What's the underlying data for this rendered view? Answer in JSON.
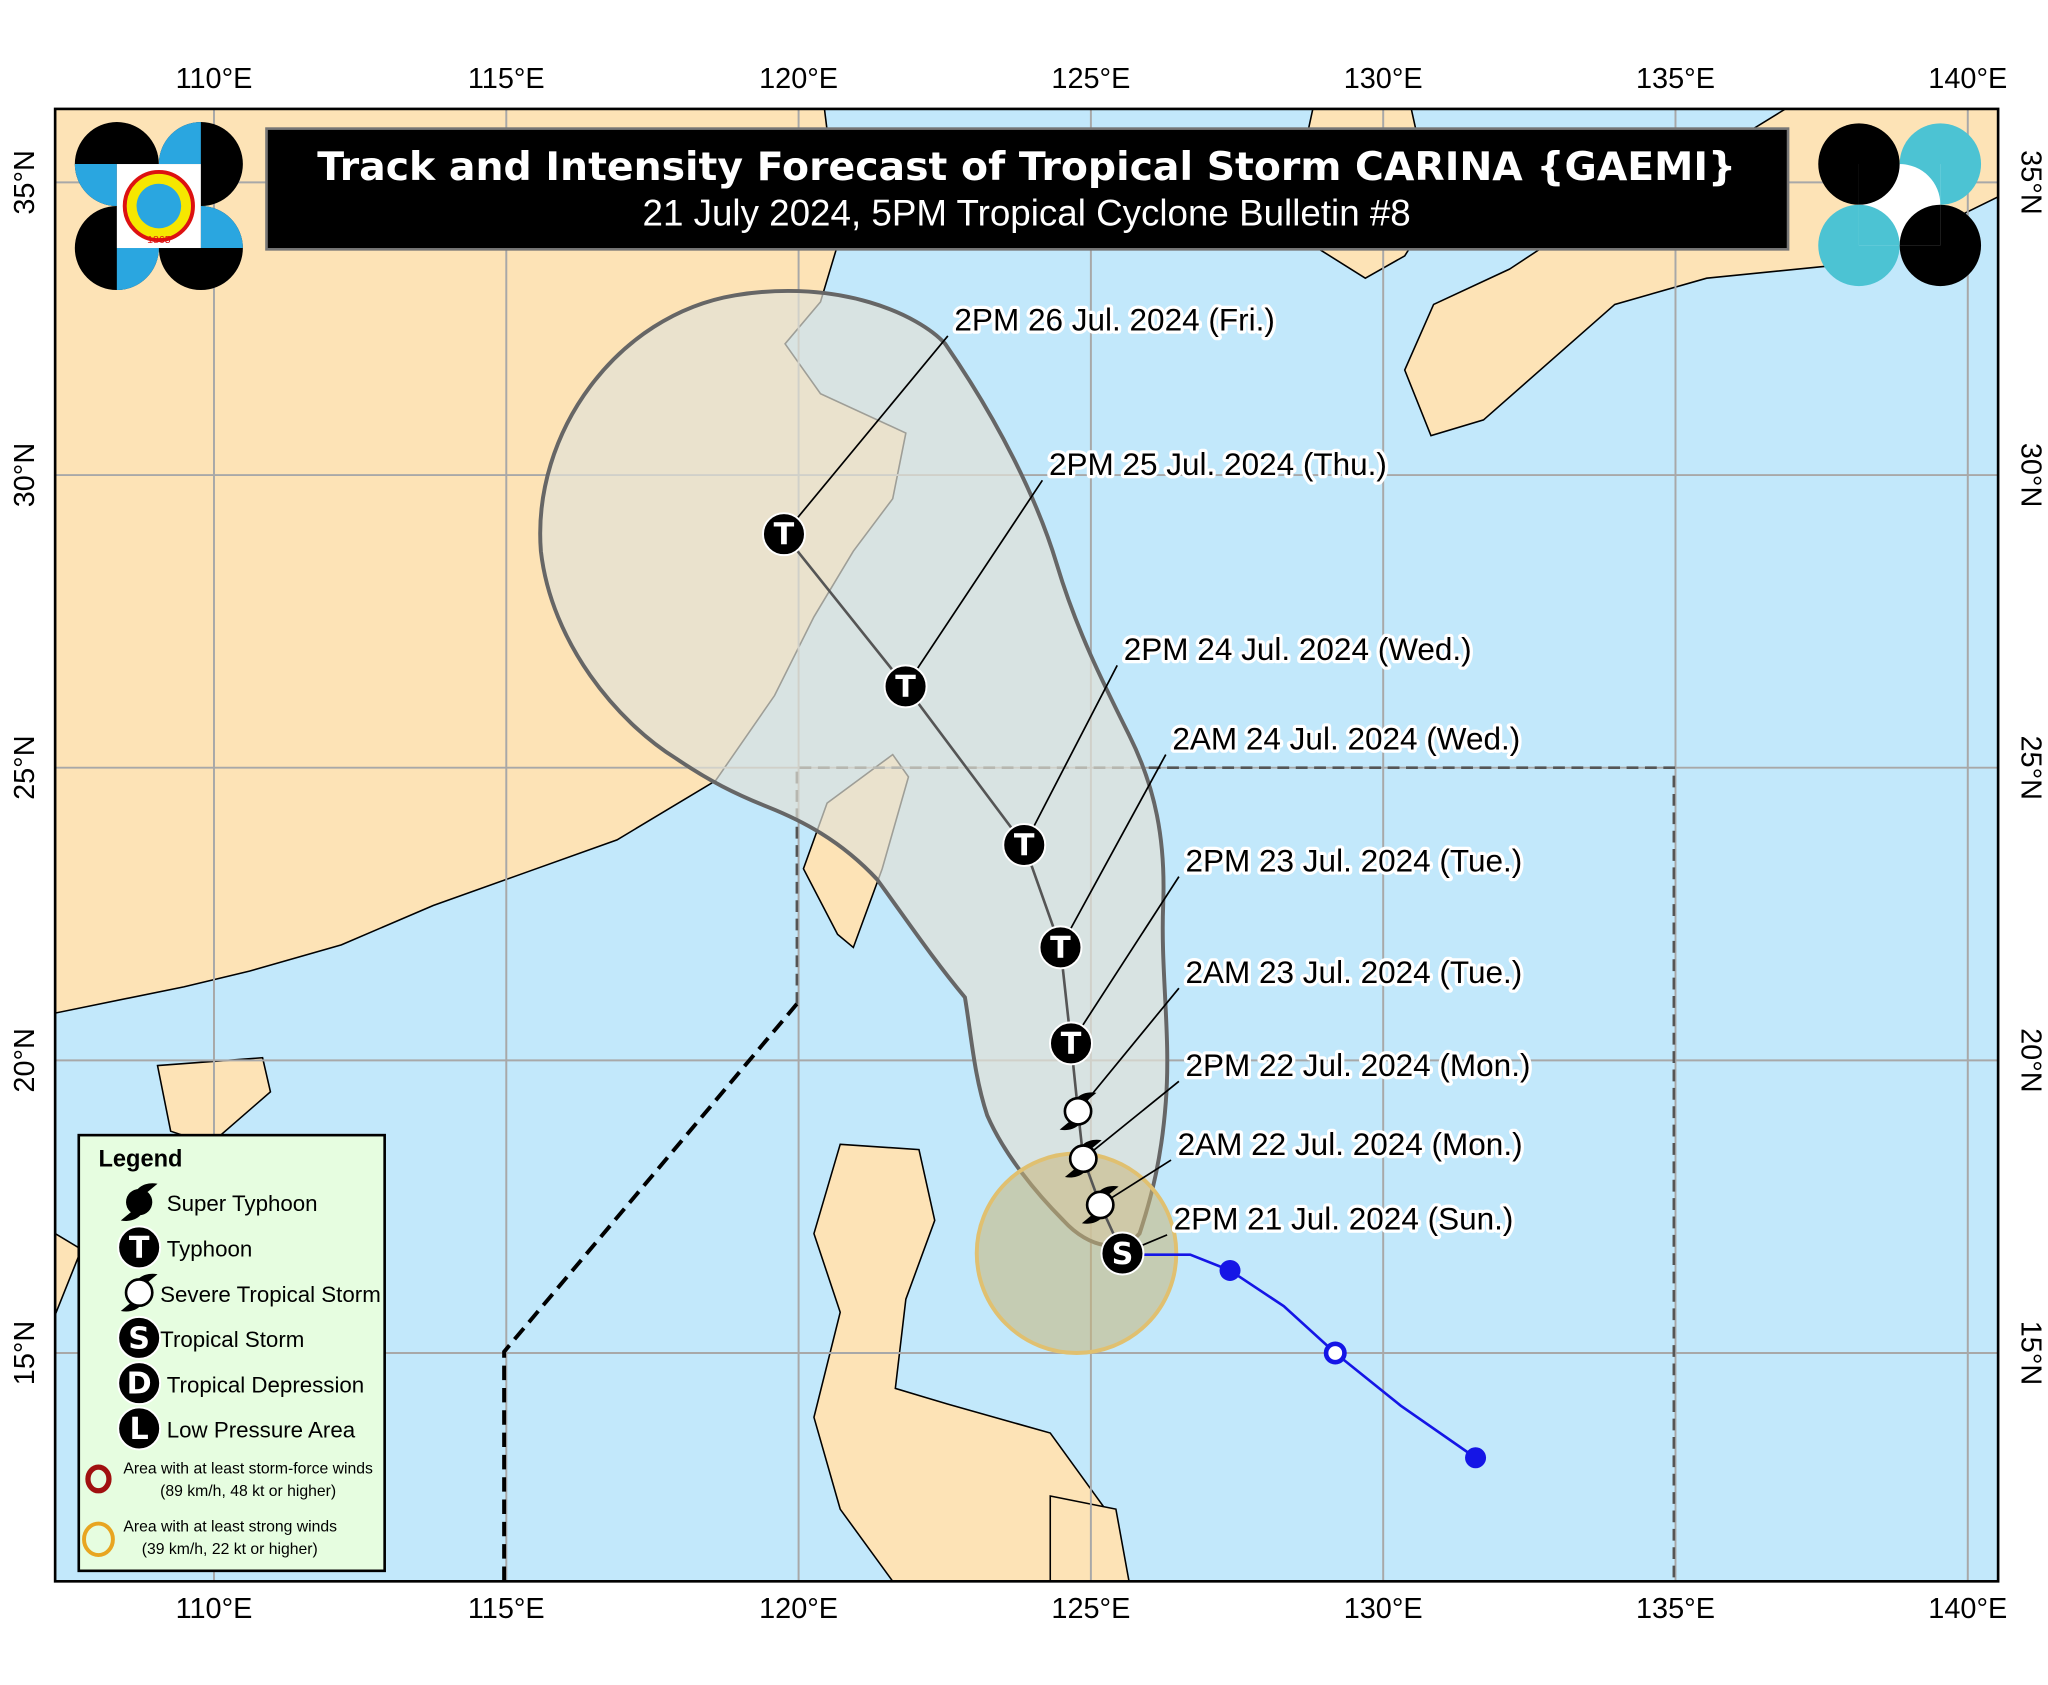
{
  "title": "Track and Intensity Forecast of Tropical Storm CARINA {GAEMI}",
  "subtitle": "21 July 2024, 5PM Tropical Cyclone Bulletin #8",
  "logos": {
    "left": "PAGASA 1865",
    "right": "DOST"
  },
  "axes": {
    "lon_ticks": [
      "110°E",
      "115°E",
      "120°E",
      "125°E",
      "130°E",
      "135°E",
      "140°E"
    ],
    "lon_values": [
      110,
      115,
      120,
      125,
      130,
      135,
      140
    ],
    "lat_ticks": [
      "35°N",
      "30°N",
      "25°N",
      "20°N",
      "15°N"
    ],
    "lat_values": [
      35,
      30,
      25,
      20,
      15
    ],
    "grid": true
  },
  "colors": {
    "sea": "#c2e8fb",
    "land": "#fde3b6",
    "cone": "#d9dfe3",
    "past_track": "#1515e6",
    "strong_winds": "#e8a521",
    "storm_force": "#a01010"
  },
  "forecast_track": [
    {
      "label": "2PM 21 Jul. 2024 (Sun.)",
      "intensity": "S",
      "lon": 125.54,
      "lat": 16.7
    },
    {
      "label": "2AM 22 Jul. 2024 (Mon.)",
      "intensity": "STS",
      "lon": 125.16,
      "lat": 17.53
    },
    {
      "label": "2PM 22 Jul. 2024 (Mon.)",
      "intensity": "STS",
      "lon": 124.87,
      "lat": 18.32
    },
    {
      "label": "2AM 23 Jul. 2024 (Tue.)",
      "intensity": "STS",
      "lon": 124.78,
      "lat": 19.13
    },
    {
      "label": "2PM 23 Jul. 2024 (Tue.)",
      "intensity": "T",
      "lon": 124.66,
      "lat": 20.29
    },
    {
      "label": "2AM 24 Jul. 2024 (Wed.)",
      "intensity": "T",
      "lon": 124.48,
      "lat": 21.93
    },
    {
      "label": "2PM 24 Jul. 2024 (Wed.)",
      "intensity": "T",
      "lon": 123.86,
      "lat": 23.68
    },
    {
      "label": "2PM 25 Jul. 2024 (Thu.)",
      "intensity": "T",
      "lon": 121.83,
      "lat": 26.39
    },
    {
      "label": "2PM 26 Jul. 2024 (Fri.)",
      "intensity": "T",
      "lon": 119.75,
      "lat": 28.99
    }
  ],
  "past_track": [
    {
      "lon": 131.58,
      "lat": 13.21,
      "type": "filled"
    },
    {
      "lon": 130.3,
      "lat": 14.1,
      "type": "none"
    },
    {
      "lon": 129.18,
      "lat": 15.0,
      "type": "open"
    },
    {
      "lon": 128.3,
      "lat": 15.8,
      "type": "none"
    },
    {
      "lon": 127.38,
      "lat": 16.41,
      "type": "filled"
    },
    {
      "lon": 126.7,
      "lat": 16.68,
      "type": "none"
    },
    {
      "lon": 125.54,
      "lat": 16.68,
      "type": "none"
    }
  ],
  "legend": {
    "title": "Legend",
    "items": [
      {
        "symbol": "super-typhoon",
        "text": "Super Typhoon"
      },
      {
        "symbol": "T",
        "text": "Typhoon"
      },
      {
        "symbol": "severe-tropical-storm",
        "text": "Severe Tropical Storm"
      },
      {
        "symbol": "S",
        "text": "Tropical Storm"
      },
      {
        "symbol": "D",
        "text": "Tropical Depression"
      },
      {
        "symbol": "L",
        "text": "Low Pressure Area"
      }
    ],
    "areas": [
      {
        "color": "#a01010",
        "line1": "Area with at least storm-force winds",
        "line2": "(89 km/h, 48 kt or higher)"
      },
      {
        "color": "#e8a521",
        "line1": "Area with at least strong winds",
        "line2": "(39 km/h, 22 kt or higher)"
      }
    ]
  }
}
